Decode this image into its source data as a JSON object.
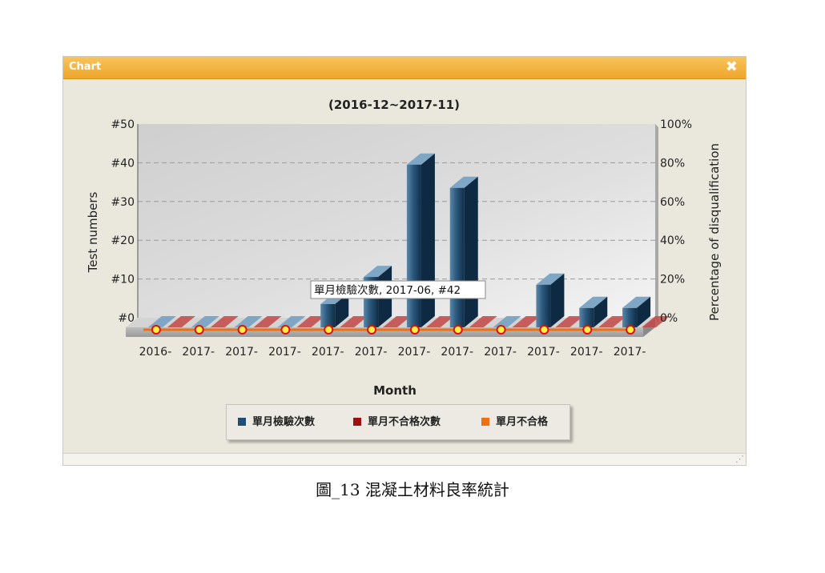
{
  "window": {
    "title": "Chart",
    "close_glyph": "✖"
  },
  "caption": "圖_13 混凝土材料良率統計",
  "tooltip": "單月檢驗次數, 2017-06, #42",
  "chart_data": {
    "type": "bar",
    "title": "(2016-12~2017-11)",
    "xlabel": "Month",
    "ylabel": "Test numbers",
    "y2label": "Percentage of disqualification",
    "ylim": [
      0,
      50
    ],
    "y2lim": [
      0,
      100
    ],
    "yticks": [
      "#0",
      "#10",
      "#20",
      "#30",
      "#40",
      "#50"
    ],
    "y2ticks": [
      "0%",
      "20%",
      "40%",
      "60%",
      "80%",
      "100%"
    ],
    "categories": [
      "2016-",
      "2017-",
      "2017-",
      "2017-",
      "2017-",
      "2017-",
      "2017-",
      "2017-",
      "2017-",
      "2017-",
      "2017-",
      "2017-"
    ],
    "series": [
      {
        "name": "單月檢驗次數",
        "color": "#1f4e75",
        "values": [
          0,
          0,
          0,
          0,
          6,
          13,
          42,
          36,
          0,
          11,
          5,
          5
        ]
      },
      {
        "name": "單月不合格次數",
        "color": "#a01010",
        "values": [
          0,
          0,
          0,
          0,
          0,
          0,
          0,
          0,
          0,
          0,
          0,
          0
        ]
      },
      {
        "name": "單月不合格",
        "color": "#f07010",
        "axis": "right",
        "values": [
          0,
          0,
          0,
          0,
          0,
          0,
          0,
          0,
          0,
          0,
          0,
          0
        ]
      }
    ],
    "grid": true,
    "legend": "bottom"
  }
}
